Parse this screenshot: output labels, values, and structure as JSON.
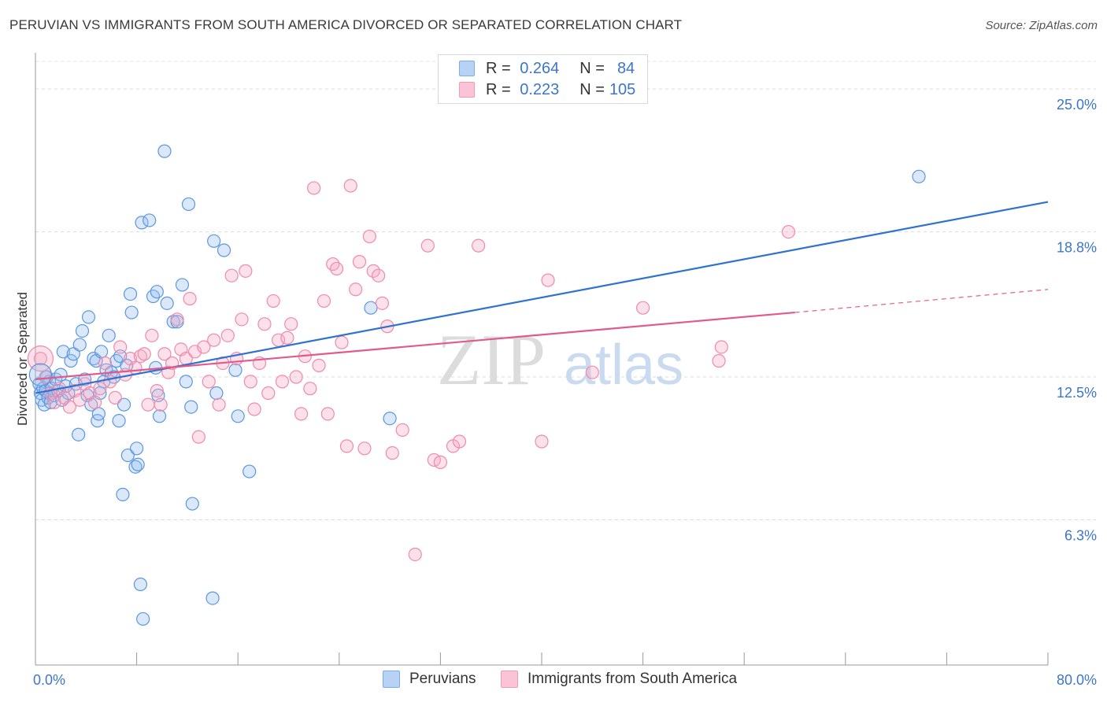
{
  "title": "PERUVIAN VS IMMIGRANTS FROM SOUTH AMERICA DIVORCED OR SEPARATED CORRELATION CHART",
  "source": "Source: ZipAtlas.com",
  "watermark": {
    "zip": "ZIP",
    "atlas": "atlas"
  },
  "legend": {
    "rows": [
      {
        "r_label": "R =",
        "r_value": "0.264",
        "n_label": "N =",
        "n_value": "84",
        "color": "#7aaee8"
      },
      {
        "r_label": "R =",
        "r_value": "0.223",
        "n_label": "N =",
        "n_value": "105",
        "color": "#f29bb8"
      }
    ]
  },
  "bottom_legend": [
    "Peruvians",
    "Immigrants from South America"
  ],
  "chart_data": {
    "type": "scatter",
    "xlabel": "",
    "ylabel": "Divorced or Separated",
    "x_ticks": [
      "0.0%",
      "80.0%"
    ],
    "y_ticks": [
      "25.0%",
      "18.8%",
      "12.5%",
      "6.3%"
    ],
    "y_tick_values": [
      25.0,
      18.8,
      12.5,
      6.3
    ],
    "xlim": [
      0,
      80
    ],
    "ylim": [
      0,
      26.3
    ],
    "grid": true,
    "series": [
      {
        "name": "Peruvians",
        "color": "#5b97df",
        "line_color": "#2f72d0",
        "trend": {
          "x": [
            0,
            80
          ],
          "y": [
            11.8,
            20.1
          ],
          "dashed_from": null
        },
        "points": [
          [
            0.3,
            12.2
          ],
          [
            0.4,
            11.8
          ],
          [
            0.5,
            11.5
          ],
          [
            0.6,
            12.0
          ],
          [
            0.7,
            11.3
          ],
          [
            0.8,
            11.9
          ],
          [
            0.9,
            12.5
          ],
          [
            1.0,
            11.6
          ],
          [
            1.1,
            12.3
          ],
          [
            1.2,
            11.4
          ],
          [
            1.3,
            12.0
          ],
          [
            1.5,
            11.7
          ],
          [
            1.6,
            12.4
          ],
          [
            1.8,
            11.9
          ],
          [
            2.0,
            12.6
          ],
          [
            2.1,
            11.5
          ],
          [
            2.2,
            13.6
          ],
          [
            2.4,
            12.1
          ],
          [
            2.6,
            11.8
          ],
          [
            2.8,
            13.2
          ],
          [
            3.0,
            13.5
          ],
          [
            3.2,
            12.2
          ],
          [
            3.4,
            10.0
          ],
          [
            3.5,
            13.9
          ],
          [
            3.7,
            14.5
          ],
          [
            3.9,
            12.4
          ],
          [
            4.1,
            11.7
          ],
          [
            4.2,
            15.1
          ],
          [
            4.4,
            11.3
          ],
          [
            4.6,
            13.3
          ],
          [
            4.8,
            13.2
          ],
          [
            4.9,
            10.6
          ],
          [
            5.0,
            10.9
          ],
          [
            5.1,
            11.8
          ],
          [
            5.2,
            13.6
          ],
          [
            5.4,
            12.3
          ],
          [
            5.6,
            12.8
          ],
          [
            5.8,
            14.3
          ],
          [
            6.0,
            12.7
          ],
          [
            6.2,
            12.5
          ],
          [
            6.4,
            13.2
          ],
          [
            6.6,
            10.6
          ],
          [
            6.7,
            13.4
          ],
          [
            6.9,
            7.4
          ],
          [
            7.0,
            11.3
          ],
          [
            7.2,
            13.0
          ],
          [
            7.3,
            9.1
          ],
          [
            7.5,
            16.1
          ],
          [
            7.6,
            15.3
          ],
          [
            7.9,
            8.6
          ],
          [
            8.0,
            9.4
          ],
          [
            8.1,
            8.7
          ],
          [
            8.3,
            3.5
          ],
          [
            8.4,
            19.2
          ],
          [
            8.5,
            2.0
          ],
          [
            9.0,
            19.3
          ],
          [
            9.3,
            16.0
          ],
          [
            9.5,
            12.9
          ],
          [
            9.6,
            16.2
          ],
          [
            9.7,
            11.7
          ],
          [
            9.8,
            10.8
          ],
          [
            10.2,
            22.3
          ],
          [
            10.4,
            15.7
          ],
          [
            10.9,
            14.9
          ],
          [
            11.2,
            14.9
          ],
          [
            11.6,
            16.5
          ],
          [
            11.9,
            12.3
          ],
          [
            12.1,
            20.0
          ],
          [
            12.3,
            11.2
          ],
          [
            12.4,
            7.0
          ],
          [
            14.0,
            2.9
          ],
          [
            14.1,
            18.4
          ],
          [
            14.3,
            11.8
          ],
          [
            14.9,
            18.0
          ],
          [
            15.8,
            12.8
          ],
          [
            16.0,
            10.8
          ],
          [
            16.9,
            8.4
          ],
          [
            26.5,
            15.5
          ],
          [
            28.0,
            10.7
          ],
          [
            69.8,
            21.2
          ]
        ]
      },
      {
        "name": "Immigrants from South America",
        "color": "#ee8aab",
        "line_color": "#e05a8c",
        "trend": {
          "x": [
            0,
            60,
            80
          ],
          "y": [
            12.4,
            15.3,
            16.3
          ],
          "dashed_from": 60
        },
        "points": [
          [
            0.4,
            13.3
          ],
          [
            0.8,
            12.5
          ],
          [
            1.2,
            11.8
          ],
          [
            1.5,
            11.4
          ],
          [
            1.9,
            12.0
          ],
          [
            2.3,
            11.6
          ],
          [
            2.7,
            11.2
          ],
          [
            3.1,
            11.9
          ],
          [
            3.5,
            11.5
          ],
          [
            3.9,
            12.2
          ],
          [
            4.3,
            11.8
          ],
          [
            4.7,
            11.4
          ],
          [
            5.1,
            12.0
          ],
          [
            5.5,
            13.1
          ],
          [
            5.9,
            12.3
          ],
          [
            6.3,
            11.6
          ],
          [
            6.7,
            13.8
          ],
          [
            7.1,
            12.6
          ],
          [
            7.5,
            13.3
          ],
          [
            7.9,
            12.9
          ],
          [
            8.3,
            13.4
          ],
          [
            8.6,
            13.5
          ],
          [
            8.9,
            11.3
          ],
          [
            9.2,
            14.3
          ],
          [
            9.6,
            11.9
          ],
          [
            9.9,
            11.3
          ],
          [
            10.2,
            13.5
          ],
          [
            10.5,
            12.7
          ],
          [
            10.8,
            13.1
          ],
          [
            11.2,
            15.0
          ],
          [
            11.5,
            13.7
          ],
          [
            11.9,
            13.3
          ],
          [
            12.2,
            15.9
          ],
          [
            12.6,
            13.6
          ],
          [
            12.9,
            9.9
          ],
          [
            13.3,
            13.8
          ],
          [
            13.7,
            12.3
          ],
          [
            14.1,
            14.1
          ],
          [
            14.5,
            11.3
          ],
          [
            14.8,
            13.1
          ],
          [
            15.2,
            14.3
          ],
          [
            15.5,
            16.9
          ],
          [
            15.9,
            13.3
          ],
          [
            16.3,
            15.0
          ],
          [
            16.6,
            17.1
          ],
          [
            17.0,
            12.3
          ],
          [
            17.3,
            11.1
          ],
          [
            17.7,
            13.1
          ],
          [
            18.1,
            14.8
          ],
          [
            18.4,
            11.8
          ],
          [
            18.8,
            15.8
          ],
          [
            19.2,
            14.1
          ],
          [
            19.5,
            12.3
          ],
          [
            19.9,
            14.2
          ],
          [
            20.2,
            14.8
          ],
          [
            20.6,
            12.5
          ],
          [
            21.0,
            10.9
          ],
          [
            21.3,
            13.4
          ],
          [
            21.7,
            12.0
          ],
          [
            22.0,
            20.7
          ],
          [
            22.4,
            13.0
          ],
          [
            22.8,
            15.8
          ],
          [
            23.1,
            10.9
          ],
          [
            23.5,
            17.4
          ],
          [
            23.8,
            17.2
          ],
          [
            24.2,
            14.0
          ],
          [
            24.6,
            9.5
          ],
          [
            24.9,
            20.8
          ],
          [
            25.3,
            16.3
          ],
          [
            25.6,
            17.5
          ],
          [
            26.0,
            9.4
          ],
          [
            26.4,
            18.6
          ],
          [
            26.7,
            17.1
          ],
          [
            27.1,
            16.9
          ],
          [
            27.4,
            15.7
          ],
          [
            27.8,
            14.7
          ],
          [
            28.2,
            9.2
          ],
          [
            29.0,
            10.2
          ],
          [
            30.0,
            4.8
          ],
          [
            31.0,
            18.2
          ],
          [
            31.5,
            8.9
          ],
          [
            32.0,
            8.8
          ],
          [
            33.0,
            9.5
          ],
          [
            33.5,
            9.7
          ],
          [
            35.0,
            18.2
          ],
          [
            40.0,
            9.7
          ],
          [
            40.5,
            16.7
          ],
          [
            44.0,
            12.7
          ],
          [
            48.0,
            15.5
          ],
          [
            54.0,
            13.2
          ],
          [
            54.2,
            13.8
          ],
          [
            59.5,
            18.8
          ]
        ]
      }
    ]
  }
}
